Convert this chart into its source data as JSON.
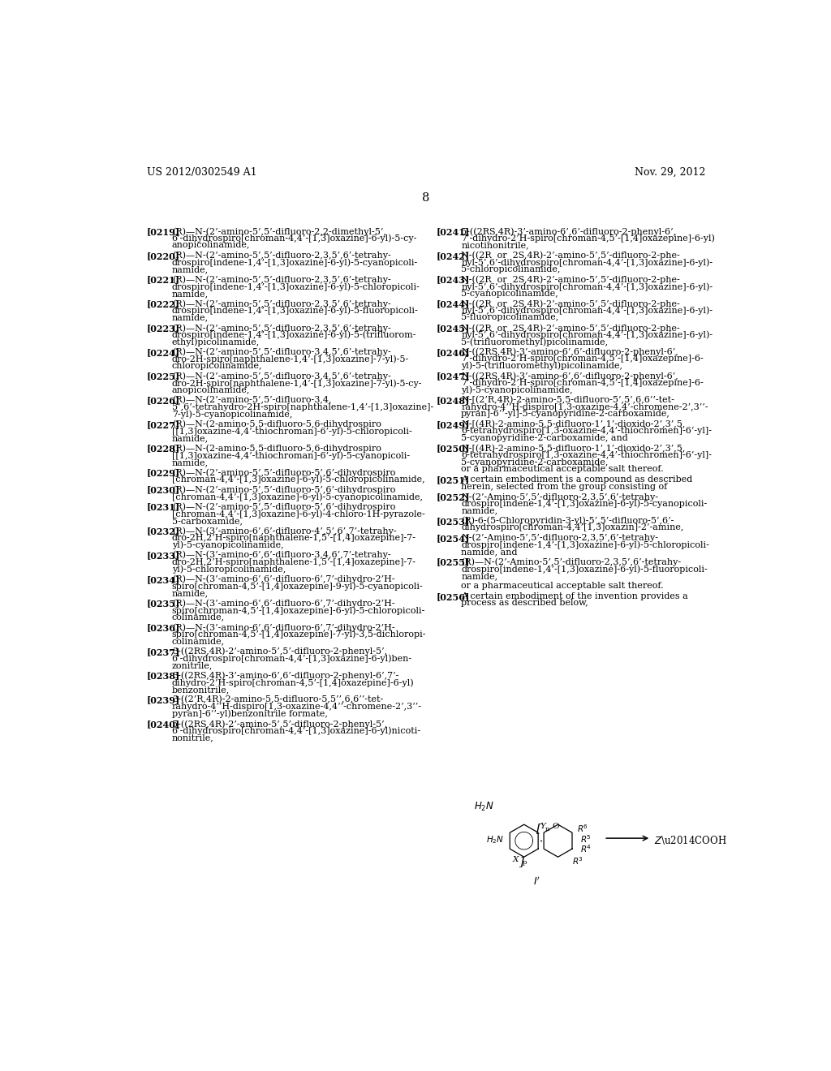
{
  "bg_color": "#ffffff",
  "header_left": "US 2012/0302549 A1",
  "header_right": "Nov. 29, 2012",
  "page_number": "8",
  "left_column": [
    {
      "ref": "[0219]",
      "text": "(R)—N-(2’-amino-5’,5’-difluoro-2,2-dimethyl-5’,\n6’-dihydrospiro[chroman-4,4’-[1,3]oxazine]-6-yl)-5-cy-\nanopicolinamide,"
    },
    {
      "ref": "[0220]",
      "text": "(R)—N-(2’-amino-5’,5’-difluoro-2,3,5’,6’-tetrahy-\ndrospiro[indene-1,4’-[1,3]oxazine]-6-yl)-5-cyanopicoli-\nnamide,"
    },
    {
      "ref": "[0221]",
      "text": "(R)—N-(2’-amino-5’,5’-difluoro-2,3,5’,6’-tetrahy-\ndrospiro[indene-1,4’-[1,3]oxazine]-6-yl)-5-chloropicoli-\nnamide,"
    },
    {
      "ref": "[0222]",
      "text": "(R)—N-(2’-amino-5’,5’-difluoro-2,3,5’,6’-tetrahy-\ndrospiro[indene-1,4’-[1,3]oxazine]-6-yl)-5-fluoropicoli-\nnamide,"
    },
    {
      "ref": "[0223]",
      "text": "(R)—N-(2’-amino-5’,5’-difluoro-2,3,5’,6’-tetrahy-\ndrospiro[indene-1,4’-[1,3]oxazine]-6-yl)-5-(trifluorom-\nethyl)picolinamide,"
    },
    {
      "ref": "[0224]",
      "text": "(R)—N-(2’-amino-5’,5’-difluoro-3,4,5’,6’-tetrahy-\ndro-2H-spiro[naphthalene-1,4’-[1,3]oxazine]-7-yl)-5-\nchloropicolinamide,"
    },
    {
      "ref": "[0225]",
      "text": "(R)—N-(2’-amino-5’,5’-difluoro-3,4,5’,6’-tetrahy-\ndro-2H-spiro[naphthalene-1,4’-[1,3]oxazine]-7-yl)-5-cy-\nanopicolinamide,"
    },
    {
      "ref": "[0226]",
      "text": "(R)—N-(2’-amino-5’,5’-difluoro-3,4,\n5’,6’-tetrahydro-2H-spiro[naphthalene-1,4’-[1,3]oxazine]-\n7-yl)-5-cyanopicolinamide,"
    },
    {
      "ref": "[0227]",
      "text": "(R)—N-(2-amino-5,5-difluoro-5,6-dihydrospiro\n[[1,3]oxazine-4,4’-thiochroman]-6’-yl)-5-chloropicoli-\nnamide,"
    },
    {
      "ref": "[0228]",
      "text": "(R)—N-(2-amino-5,5-difluoro-5,6-dihydrospiro\n[[1,3]oxazine-4,4’-thiochroman]-6’-yl)-5-cyanopicoli-\nnamide,"
    },
    {
      "ref": "[0229]",
      "text": "(R)—N-(2’-amino-5’,5’-difluoro-5’,6’-dihydrospiro\n[chroman-4,4’-[1,3]oxazine]-6-yl)-5-chloropicolinamide,"
    },
    {
      "ref": "[0230]",
      "text": "(R)—N-(2’-amino-5’,5’-difluoro-5’,6’-dihydrospiro\n[chroman-4,4’-[1,3]oxazine]-6-yl)-5-cyanopicolinamide,"
    },
    {
      "ref": "[0231]",
      "text": "(R)—N-(2’-amino-5’,5’-difluoro-5’,6’-dihydrospiro\n[chroman-4,4’-[1,3]oxazine]-6-yl)-4-chloro-1H-pyrazole-\n5-carboxamide,"
    },
    {
      "ref": "[0232]",
      "text": "(R)—N-(3’-amino-6’,6’-difluoro-4’,5’,6’,7’-tetrahy-\ndro-2H,2’H-spiro[naphthalene-1,5’-[1,4]oxazepine]-7-\nyl)-5-cyanopicolinamide,"
    },
    {
      "ref": "[0233]",
      "text": "(R)—N-(3’-amino-6’,6’-difluoro-3,4,6’,7’-tetrahy-\ndro-2H,2’H-spiro[naphthalene-1,5’-[1,4]oxazepine]-7-\nyl)-5-chloropicolinamide,"
    },
    {
      "ref": "[0234]",
      "text": "(R)—N-(3’-amino-6’,6’-difluoro-6’,7’-dihydro-2’H-\nspiro[chroman-4,5’-[1,4]oxazepine]-9-yl)-5-cyanopicoli-\nnamide,"
    },
    {
      "ref": "[0235]",
      "text": "(R)—N-(3’-amino-6’,6’-difluoro-6’,7’-dihydro-2’H-\nspiro[chroman-4,5’-[1,4]oxazepine]-6-yl)-5-chloropicoli-\ncolinamide,"
    },
    {
      "ref": "[0236]",
      "text": "(R)—N-(3’-amino-6’,6’-difluoro-6’,7’-dihydro-2’H-\nspiro[chroman-4,5’-[1,4]oxazepine]-7-yl)-3,5-dichloropi-\ncolinamide,"
    },
    {
      "ref": "[0237]",
      "text": "3-((2RS,4R)-2’-amino-5’,5’-difluoro-2-phenyl-5’,\n6’-dihydrospiro[chroman-4,4’-[1,3]oxazine]-6-yl)ben-\nzonitrile,"
    },
    {
      "ref": "[0238]",
      "text": "3-((2RS,4R)-3’-amino-6’,6’-difluoro-2-phenyl-6’,7’-\ndihydro-2’H-spiro[chroman-4,5’-[1,4]oxazepine]-6-yl)\nbenzonitrile,"
    },
    {
      "ref": "[0239]",
      "text": "3-((2’R,4R)-2-amino-5,5-difluoro-5,5’’,6,6’’-tet-\nrahydro-4’’H-dispiro[1,3-oxazine-4,4’’-chromene-2’,3’’-\npyran]-6’’-yl)benzonitrile formate,"
    },
    {
      "ref": "[0240]",
      "text": "5-((2RS,4R)-2’-amino-5’,5’-difluoro-2-phenyl-5’,\n6’-dihydrospiro[chroman-4,4’-[1,3]oxazine]-6-yl)nicoti-\nnonitrile,"
    }
  ],
  "right_column": [
    {
      "ref": "[0241]",
      "text": "5-((2RS,4R)-3’-amino-6’,6’-difluoro-2-phenyl-6’,\n7’-dihydro-2’H-spiro[chroman-4,5’-[1,4]oxazepine]-6-yl)\nnicotinonitrile,"
    },
    {
      "ref": "[0242]",
      "text": "N-((2R  or  2S,4R)-2’-amino-5’,5’-difluoro-2-phe-\nnyl-5’,6’-dihydrospiro[chroman-4,4’-[1,3]oxazine]-6-yl)-\n5-chloropicolinamide,"
    },
    {
      "ref": "[0243]",
      "text": "N-((2R  or  2S,4R)-2’-amino-5’,5’-difluoro-2-phe-\nnyl-5’,6’-dihydrospiro[chroman-4,4’-[1,3]oxazine]-6-yl)-\n5-cyanopicolinamide,"
    },
    {
      "ref": "[0244]",
      "text": "N-((2R  or  2S,4R)-2’-amino-5’,5’-difluoro-2-phe-\nnyl-5’,6’-dihydrospiro[chroman-4,4’-[1,3]oxazine]-6-yl)-\n5-fluoropicolinamide,"
    },
    {
      "ref": "[0245]",
      "text": "N-((2R  or  2S,4R)-2’-amino-5’,5’-difluoro-2-phe-\nnyl-5’,6’-dihydrospiro[chroman-4,4’-[1,3]oxazine]-6-yl)-\n5-(trifluoromethyl)picolinamide,"
    },
    {
      "ref": "[0246]",
      "text": "N-((2RS,4R)-3’-amino-6’,6’-difluoro-2-phenyl-6’,\n7’-dihydro-2’H-spiro[chroman-4,5’-[1,4]oxazepine]-6-\nyl)-5-(trifluoromethyl)picolinamide,"
    },
    {
      "ref": "[0247]",
      "text": "N-((2RS,4R)-3’-amino-6’,6’-difluoro-2-phenyl-6’,\n7’-dihydro-2’H-spiro[chroman-4,5’-[1,4]oxazepine]-6-\nyl)-5-cyanopicolinamide,"
    },
    {
      "ref": "[0248]",
      "text": "N-[(2’R,4R)-2-amino-5,5-difluoro-5’,5’,6,6’’-tet-\nrahydro-4’’H-dispiro[1,3-oxazine-4,4’-chromene-2’,3’’-\npyran]-6’’-yl]-5-cyanopyridine-2-carboxamide,"
    },
    {
      "ref": "[0249]",
      "text": "N-[(4R)-2-amino-5,5-difluoro-1’,1’-dioxido-2’,3’,5,\n6-tetrahydrospiro[1,3-oxazine-4,4’-thiochromen]-6’-yl]-\n5-cyanopyridine-2-carboxamide, and"
    },
    {
      "ref": "[0250]",
      "text": "N-[(4R)-2-amino-5,5-difluoro-1’,1’-dioxido-2’,3’,5,\n6-tetrahydrospiro[1,3-oxazine-4,4’-thiochromen]-6’-yl]-\n5-cyanopyridine-2-carboxamide,\nor a pharmaceutical acceptable salt thereof."
    },
    {
      "ref": "[0251]",
      "text": "A certain embodiment is a compound as described\nherein, selected from the group consisting of"
    },
    {
      "ref": "[0252]",
      "text": "N-(2’-Amino-5’,5’-difluoro-2,3,5’,6’-tetrahy-\ndrospiro[indene-1,4’-[1,3]oxazine]-6-yl)-5-cyanopicoli-\nnamide,"
    },
    {
      "ref": "[0253]",
      "text": "(R)-6-(5-Chloropyridin-3-yl)-5’,5’-difluoro-5’,6’-\ndihydrospiro[chroman-4,4’[1,3]oxazin]-2’-amine,"
    },
    {
      "ref": "[0254]",
      "text": "N-(2’-Amino-5’,5’-difluoro-2,3,5’,6’-tetrahy-\ndrospiro[indene-1,4’-[1,3]oxazine]-6-yl)-5-chloropicoli-\nnamide, and"
    },
    {
      "ref": "[0255]",
      "text": "(R)—N-(2’-Amino-5’,5’-difluoro-2,3,5’,6’-tetrahy-\ndrospiro[indene-1,4’-[1,3]oxazine]-6-yl)-5-fluoropicoli-\nnamide,"
    },
    {
      "ref": "",
      "text": "or a pharmaceutical acceptable salt thereof."
    },
    {
      "ref": "[0256]",
      "text": "A certain embodiment of the invention provides a\nprocess as described below,"
    }
  ]
}
